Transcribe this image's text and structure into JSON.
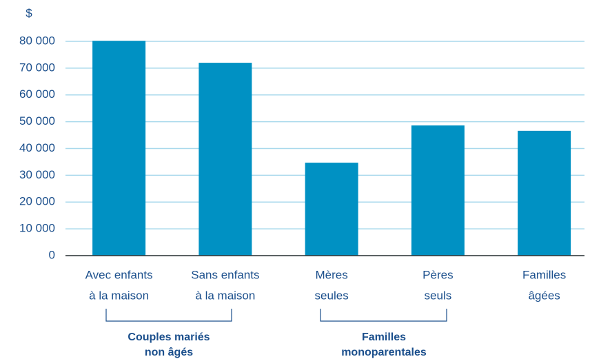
{
  "chart_data": {
    "type": "bar",
    "y_label": "$",
    "categories": [
      [
        "Avec enfants",
        "à la maison"
      ],
      [
        "Sans enfants",
        "à la maison"
      ],
      [
        "Mères",
        "seules"
      ],
      [
        "Pères",
        "seuls"
      ],
      [
        "Familles",
        "âgées"
      ]
    ],
    "values": [
      80200,
      72000,
      34700,
      48600,
      46600
    ],
    "color": "#0091c3",
    "ylim": [
      0,
      80000
    ],
    "yticks": [
      0,
      {
        "value": 10000,
        "label": "10 000"
      },
      {
        "value": 20000,
        "label": "20 000"
      },
      {
        "value": 30000,
        "label": "30 000"
      },
      {
        "value": 40000,
        "label": "40 000"
      },
      {
        "value": 50000,
        "label": "50 000"
      },
      {
        "value": 60000,
        "label": "60 000"
      },
      {
        "value": 70000,
        "label": "70 000"
      },
      {
        "value": 80000,
        "label": "80 000"
      }
    ],
    "grid": true,
    "groups": [
      [
        "Couples mariés",
        "non âgés"
      ],
      [
        "Familles",
        "monoparentales"
      ]
    ]
  }
}
